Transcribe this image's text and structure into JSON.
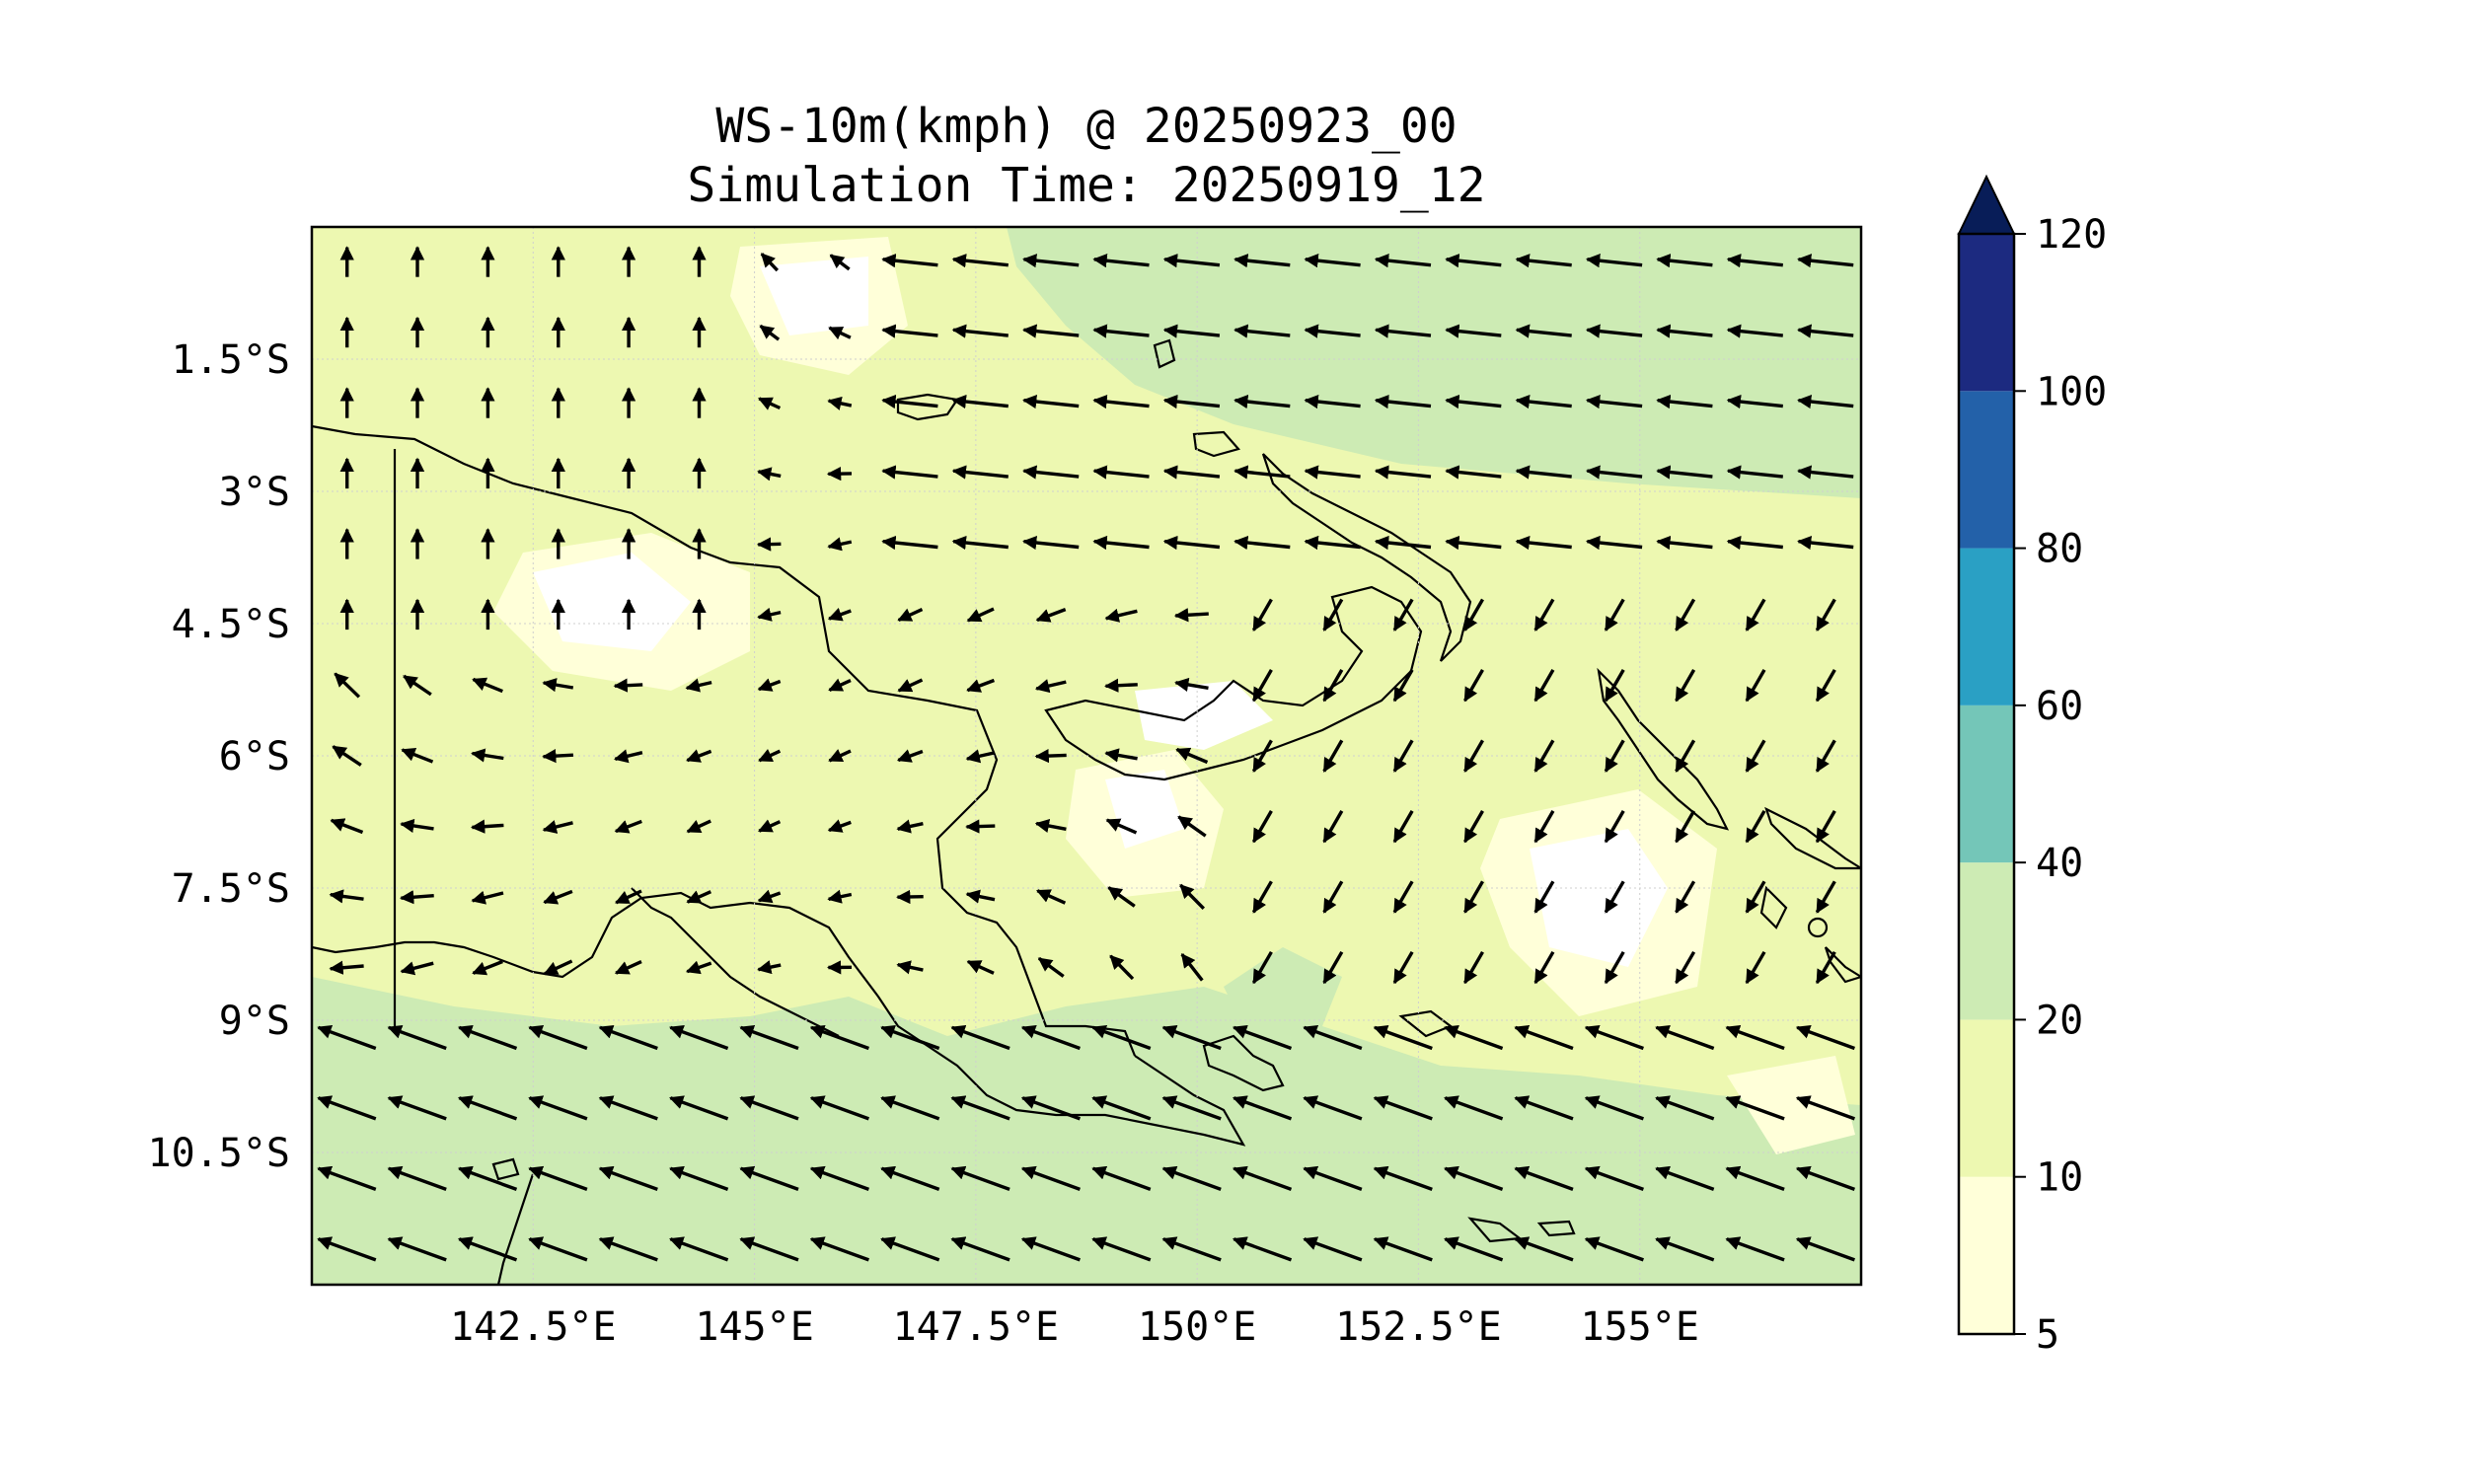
{
  "title": {
    "line1": "WS-10m(kmph) @ 20250923_00",
    "line2": "Simulation Time: 20250919_12"
  },
  "map": {
    "lon_range": [
      140,
      157.5
    ],
    "lat_range": [
      -12.0,
      0.0
    ],
    "x_ticks": [
      {
        "lon": 142.5,
        "label": "142.5°E"
      },
      {
        "lon": 145,
        "label": "145°E"
      },
      {
        "lon": 147.5,
        "label": "147.5°E"
      },
      {
        "lon": 150,
        "label": "150°E"
      },
      {
        "lon": 152.5,
        "label": "152.5°E"
      },
      {
        "lon": 155,
        "label": "155°E"
      }
    ],
    "y_ticks": [
      {
        "lat": -1.5,
        "label": "1.5°S"
      },
      {
        "lat": -3,
        "label": "3°S"
      },
      {
        "lat": -4.5,
        "label": "4.5°S"
      },
      {
        "lat": -6,
        "label": "6°S"
      },
      {
        "lat": -7.5,
        "label": "7.5°S"
      },
      {
        "lat": -9,
        "label": "9°S"
      },
      {
        "lat": -10.5,
        "label": "10.5°S"
      }
    ],
    "grid": true,
    "land_outline_color": "#000000",
    "border_lon": 141.0
  },
  "colorbar": {
    "levels": [
      5,
      10,
      20,
      40,
      60,
      80,
      100,
      120
    ],
    "labels": [
      "5",
      "10",
      "20",
      "40",
      "60",
      "80",
      "100",
      "120"
    ],
    "colors": [
      "#ffffd9",
      "#edf8b1",
      "#cdebb4",
      "#74c6b8",
      "#2aa0c4",
      "#2361a9",
      "#1c2a80"
    ],
    "extend_color": "#081d58",
    "extend": "max"
  },
  "speed_colors": {
    "calm": "#ffffff",
    "light": "#ffffd9",
    "moderate": "#edf8b1",
    "fresh": "#cdebb4"
  }
}
